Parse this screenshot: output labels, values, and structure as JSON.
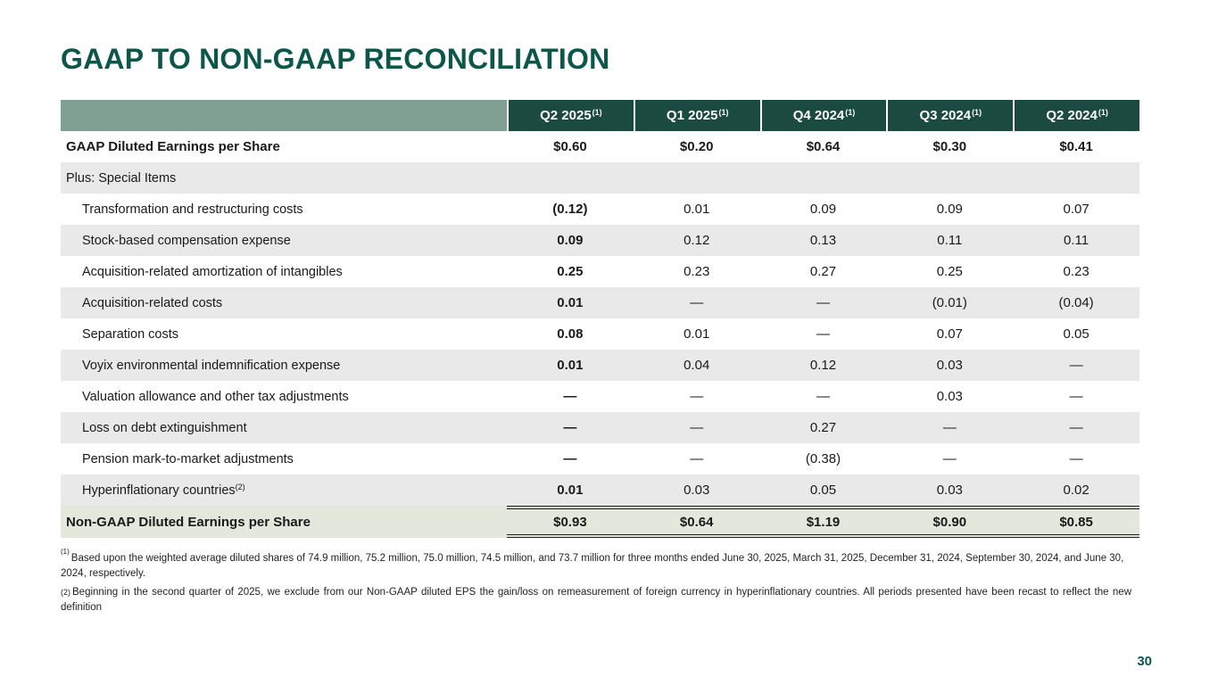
{
  "title": "GAAP TO NON-GAAP RECONCILIATION",
  "page_number": "30",
  "colors": {
    "accent_green": "#0C564A",
    "header_dark_green": "#1A4A40",
    "header_sage": "#7FA092",
    "row_gray": "#E9E9E9",
    "total_row_bg": "#E4E8DC",
    "header_text": "#FFFFFF",
    "body_text": "#1A1A1A"
  },
  "table": {
    "columns": [
      {
        "label": "Q2 2025",
        "sup": "(1)"
      },
      {
        "label": "Q1 2025",
        "sup": "(1)"
      },
      {
        "label": "Q4 2024",
        "sup": "(1)"
      },
      {
        "label": "Q3 2024",
        "sup": "(1)"
      },
      {
        "label": "Q2 2024",
        "sup": "(1)"
      }
    ],
    "rows": [
      {
        "type": "gaap",
        "label": "GAAP Diluted Earnings per Share",
        "values": [
          "$0.60",
          "$0.20",
          "$0.64",
          "$0.30",
          "$0.41"
        ]
      },
      {
        "type": "section",
        "label": "Plus: Special Items",
        "values": []
      },
      {
        "type": "item",
        "label": "Transformation and restructuring costs",
        "values": [
          "(0.12)",
          "0.01",
          "0.09",
          "0.09",
          "0.07"
        ]
      },
      {
        "type": "item",
        "label": "Stock-based compensation expense",
        "values": [
          "0.09",
          "0.12",
          "0.13",
          "0.11",
          "0.11"
        ]
      },
      {
        "type": "item",
        "label": "Acquisition-related amortization of intangibles",
        "values": [
          "0.25",
          "0.23",
          "0.27",
          "0.25",
          "0.23"
        ]
      },
      {
        "type": "item",
        "label": "Acquisition-related costs",
        "values": [
          "0.01",
          "—",
          "—",
          "(0.01)",
          "(0.04)"
        ]
      },
      {
        "type": "item",
        "label": "Separation costs",
        "values": [
          "0.08",
          "0.01",
          "—",
          "0.07",
          "0.05"
        ]
      },
      {
        "type": "item",
        "label": "Voyix environmental indemnification expense",
        "values": [
          "0.01",
          "0.04",
          "0.12",
          "0.03",
          "—"
        ]
      },
      {
        "type": "item",
        "label": "Valuation allowance and other tax adjustments",
        "values": [
          "—",
          "—",
          "—",
          "0.03",
          "—"
        ]
      },
      {
        "type": "item",
        "label": "Loss on debt extinguishment",
        "values": [
          "—",
          "—",
          "0.27",
          "—",
          "—"
        ]
      },
      {
        "type": "item",
        "label": "Pension mark-to-market adjustments",
        "values": [
          "—",
          "—",
          "(0.38)",
          "—",
          "—"
        ]
      },
      {
        "type": "item",
        "label": "Hyperinflationary countries",
        "sup": "(2)",
        "values": [
          "0.01",
          "0.03",
          "0.05",
          "0.03",
          "0.02"
        ]
      },
      {
        "type": "total",
        "label": "Non-GAAP Diluted Earnings per Share",
        "values": [
          "$0.93",
          "$0.64",
          "$1.19",
          "$0.90",
          "$0.85"
        ]
      }
    ]
  },
  "footnotes": [
    {
      "marker": "(1)",
      "text": "Based upon the weighted average diluted shares of 74.9 million, 75.2 million, 75.0 million, 74.5 million, and 73.7 million for three months ended June 30, 2025, March 31, 2025, December 31, 2024, September 30, 2024, and June 30, 2024, respectively."
    },
    {
      "marker": "(2)",
      "text": "Beginning in the second quarter of 2025, we exclude from our Non-GAAP diluted EPS the gain/loss on remeasurement of foreign currency in hyperinflationary countries. All periods presented have been recast to reflect the new definition"
    }
  ]
}
